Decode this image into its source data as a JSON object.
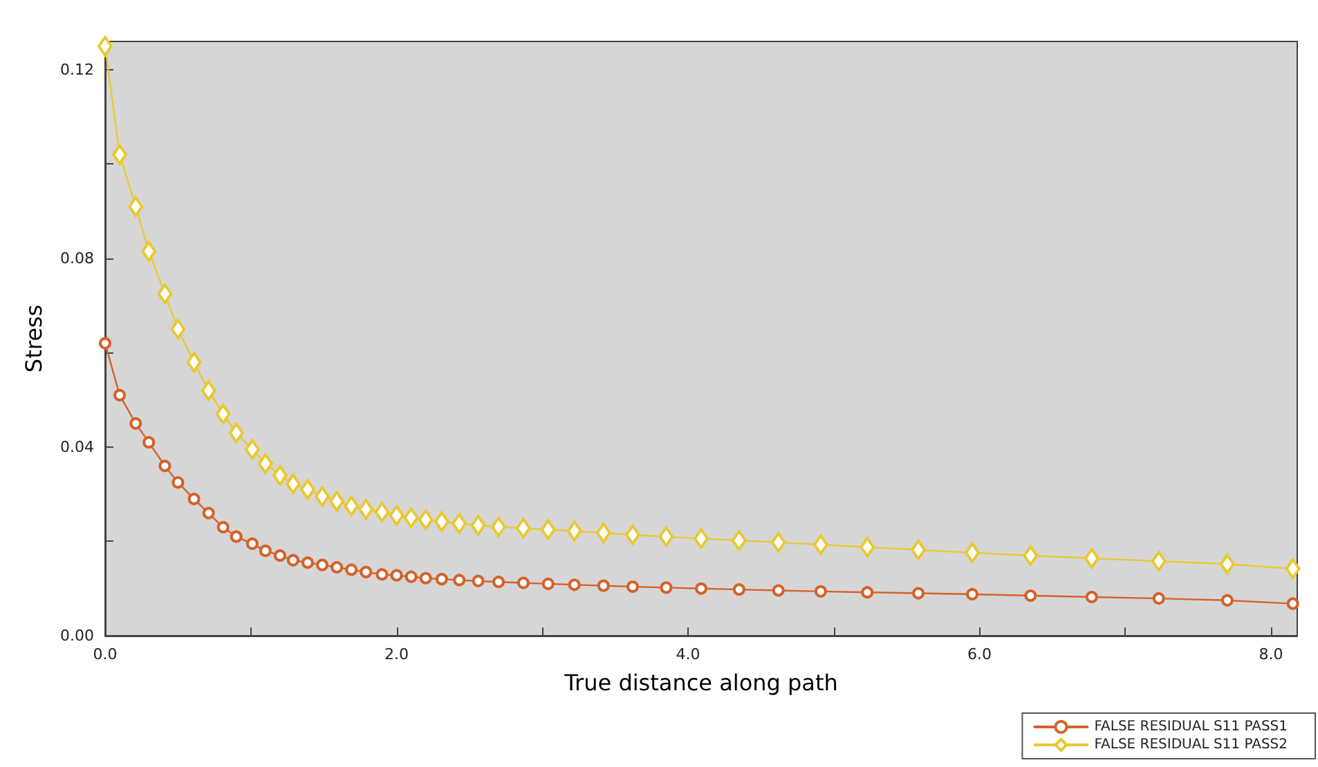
{
  "chart_data": {
    "type": "line",
    "xlabel": "True distance along path",
    "ylabel": "Stress",
    "x": [
      0,
      0.1,
      0.21,
      0.3,
      0.41,
      0.5,
      0.61,
      0.71,
      0.81,
      0.9,
      1.01,
      1.1,
      1.2,
      1.29,
      1.39,
      1.49,
      1.59,
      1.69,
      1.79,
      1.9,
      2.0,
      2.1,
      2.2,
      2.31,
      2.43,
      2.56,
      2.7,
      2.87,
      3.04,
      3.22,
      3.42,
      3.62,
      3.85,
      4.09,
      4.35,
      4.62,
      4.91,
      5.23,
      5.58,
      5.95,
      6.35,
      6.77,
      7.23,
      7.7,
      8.15
    ],
    "series": [
      {
        "name": "FALSE RESIDUAL S11 PASS1",
        "color": "#d4622a",
        "marker": "circle",
        "values": [
          0.062,
          0.051,
          0.045,
          0.041,
          0.036,
          0.0325,
          0.029,
          0.026,
          0.023,
          0.021,
          0.0195,
          0.018,
          0.017,
          0.016,
          0.0155,
          0.015,
          0.0145,
          0.014,
          0.0135,
          0.013,
          0.0128,
          0.0125,
          0.0122,
          0.012,
          0.0118,
          0.0116,
          0.0114,
          0.0112,
          0.011,
          0.0108,
          0.0106,
          0.0104,
          0.0102,
          0.01,
          0.0098,
          0.0096,
          0.0094,
          0.0092,
          0.009,
          0.0088,
          0.0085,
          0.0082,
          0.0079,
          0.0075,
          0.0068
        ]
      },
      {
        "name": "FALSE RESIDUAL S11 PASS2",
        "color": "#e8c830",
        "marker": "diamond",
        "values": [
          0.125,
          0.102,
          0.091,
          0.0815,
          0.0725,
          0.065,
          0.058,
          0.052,
          0.047,
          0.043,
          0.0395,
          0.0365,
          0.034,
          0.0322,
          0.031,
          0.0295,
          0.0285,
          0.0275,
          0.0268,
          0.0262,
          0.0255,
          0.025,
          0.0246,
          0.0242,
          0.0238,
          0.0234,
          0.0231,
          0.0228,
          0.0225,
          0.0222,
          0.0218,
          0.0214,
          0.021,
          0.0206,
          0.0202,
          0.0198,
          0.0193,
          0.0188,
          0.0182,
          0.0176,
          0.017,
          0.0164,
          0.0158,
          0.0152,
          0.0142
        ]
      }
    ],
    "xlim": [
      0,
      8.18
    ],
    "xticks": [
      {
        "value": 0,
        "label": "0.0"
      },
      {
        "value": 1,
        "label": null
      },
      {
        "value": 2,
        "label": "2.0"
      },
      {
        "value": 3,
        "label": null
      },
      {
        "value": 4,
        "label": "4.0"
      },
      {
        "value": 5,
        "label": null
      },
      {
        "value": 6,
        "label": "6.0"
      },
      {
        "value": 7,
        "label": null
      },
      {
        "value": 8,
        "label": "8.0"
      }
    ],
    "ylim": [
      0,
      0.126
    ],
    "yticks": [
      {
        "value": 0,
        "label": "0.00"
      },
      {
        "value": 0.02,
        "label": null
      },
      0.04,
      {
        "value": 0.06,
        "label": null
      },
      0.08,
      {
        "value": 0.1,
        "label": null
      },
      0.12
    ],
    "grid": false,
    "legend": "bottom right",
    "line_style": "solid"
  }
}
